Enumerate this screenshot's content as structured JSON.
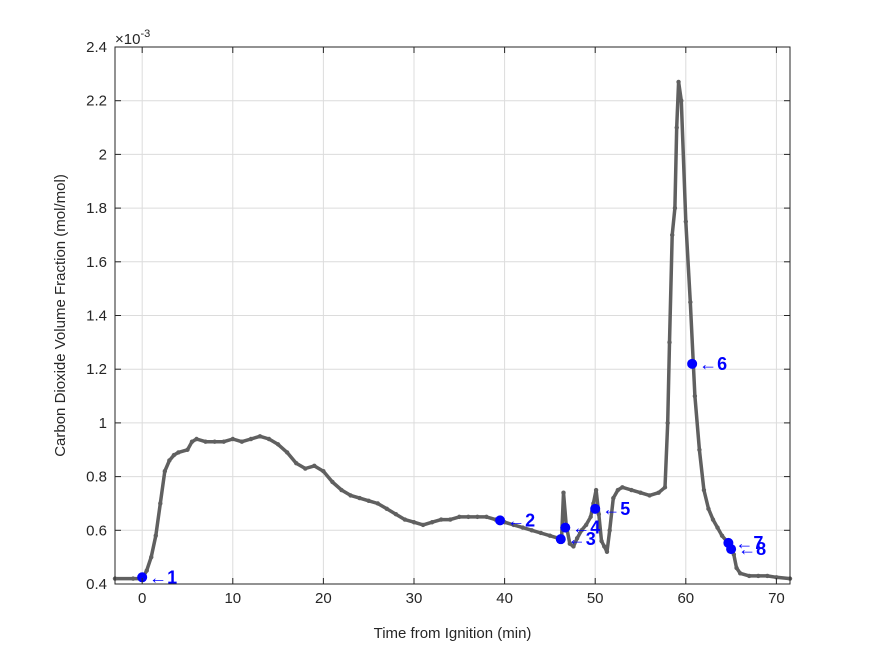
{
  "chart_data": {
    "type": "line",
    "xlabel": "Time from Ignition (min)",
    "ylabel": "Carbon Dioxide Volume Fraction (mol/mol)",
    "exponent_base": "×10",
    "exponent_power": "-3",
    "xlim": [
      -3,
      71.5
    ],
    "ylim": [
      0.4,
      2.4
    ],
    "x_ticks": [
      0,
      10,
      20,
      30,
      40,
      50,
      60,
      70
    ],
    "x_tick_labels": [
      "0",
      "10",
      "20",
      "30",
      "40",
      "50",
      "60",
      "70"
    ],
    "y_ticks": [
      0.4,
      0.6,
      0.8,
      1.0,
      1.2,
      1.4,
      1.6,
      1.8,
      2.0,
      2.2,
      2.4
    ],
    "y_tick_labels": [
      "0.4",
      "0.6",
      "0.8",
      "1",
      "1.2",
      "1.4",
      "1.6",
      "1.8",
      "2",
      "2.2",
      "2.4"
    ],
    "grid": true,
    "series": [
      {
        "color": "#606060",
        "x": [
          -3,
          -1,
          0,
          0.5,
          1,
          1.5,
          2,
          2.5,
          3,
          3.5,
          4,
          5,
          5.5,
          6,
          7,
          8,
          9,
          10,
          11,
          12,
          13,
          14,
          15,
          16,
          17,
          18,
          19,
          20,
          21,
          22,
          23,
          24,
          25,
          26,
          27,
          28,
          29,
          30,
          31,
          32,
          33,
          34,
          35,
          36,
          37,
          38,
          39,
          39.5,
          40,
          41,
          42,
          43,
          44,
          45,
          46,
          46.3,
          46.5,
          46.8,
          47.2,
          47.6,
          48,
          48.5,
          49,
          49.5,
          49.8,
          50.1,
          50.4,
          50.7,
          51,
          51.3,
          51.6,
          52,
          52.5,
          53,
          54,
          55,
          56,
          57,
          57.7,
          58,
          58.2,
          58.5,
          58.8,
          59,
          59.2,
          59.5,
          60,
          60.5,
          61,
          61.5,
          62,
          62.5,
          63,
          63.5,
          64,
          64.5,
          65,
          65.3,
          65.6,
          66,
          67,
          68,
          69,
          70,
          71.5
        ],
        "y": [
          0.42,
          0.42,
          0.42,
          0.45,
          0.5,
          0.58,
          0.7,
          0.82,
          0.86,
          0.88,
          0.89,
          0.9,
          0.93,
          0.94,
          0.93,
          0.93,
          0.93,
          0.94,
          0.93,
          0.94,
          0.95,
          0.94,
          0.92,
          0.89,
          0.85,
          0.83,
          0.84,
          0.82,
          0.78,
          0.75,
          0.73,
          0.72,
          0.71,
          0.7,
          0.68,
          0.66,
          0.64,
          0.63,
          0.62,
          0.63,
          0.64,
          0.64,
          0.65,
          0.65,
          0.65,
          0.65,
          0.64,
          0.64,
          0.63,
          0.62,
          0.61,
          0.6,
          0.59,
          0.58,
          0.57,
          0.58,
          0.74,
          0.62,
          0.55,
          0.54,
          0.57,
          0.6,
          0.62,
          0.65,
          0.7,
          0.75,
          0.66,
          0.56,
          0.54,
          0.52,
          0.6,
          0.72,
          0.75,
          0.76,
          0.75,
          0.74,
          0.73,
          0.74,
          0.76,
          1.0,
          1.3,
          1.7,
          1.8,
          2.1,
          2.27,
          2.2,
          1.75,
          1.45,
          1.1,
          0.9,
          0.75,
          0.68,
          0.64,
          0.61,
          0.58,
          0.56,
          0.54,
          0.51,
          0.46,
          0.44,
          0.43,
          0.43,
          0.43,
          0.425,
          0.42
        ]
      }
    ],
    "annotations": [
      {
        "label": "1",
        "x": 0,
        "y": 0.425
      },
      {
        "label": "2",
        "x": 39.5,
        "y": 0.637
      },
      {
        "label": "3",
        "x": 46.2,
        "y": 0.567
      },
      {
        "label": "4",
        "x": 46.7,
        "y": 0.61
      },
      {
        "label": "5",
        "x": 50,
        "y": 0.68
      },
      {
        "label": "6",
        "x": 60.7,
        "y": 1.22
      },
      {
        "label": "7",
        "x": 64.7,
        "y": 0.553
      },
      {
        "label": "8",
        "x": 65,
        "y": 0.53
      }
    ],
    "marker_color": "#0000ff",
    "annotation_arrow": "←"
  }
}
